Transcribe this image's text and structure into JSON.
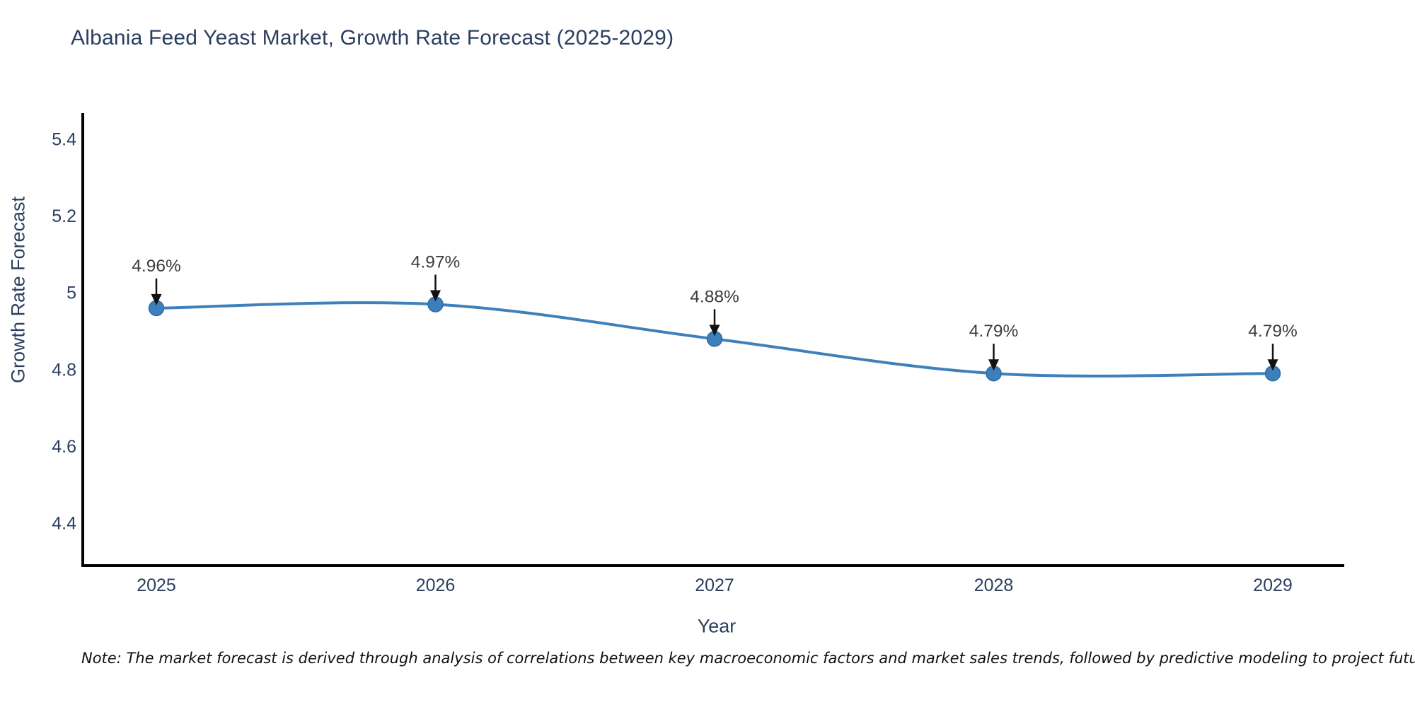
{
  "page": {
    "note": "Note: The market forecast is derived through analysis of correlations between key macroeconomic factors and market sales trends, followed by predictive modeling to project future sales"
  },
  "chart_data": {
    "type": "line",
    "title": "Albania Feed Yeast Market, Growth Rate Forecast (2025-2029)",
    "xlabel": "Year",
    "ylabel": "Growth Rate Forecast",
    "categories": [
      "2025",
      "2026",
      "2027",
      "2028",
      "2029"
    ],
    "values": [
      4.96,
      4.97,
      4.88,
      4.79,
      4.79
    ],
    "point_labels": [
      "4.96%",
      "4.97%",
      "4.88%",
      "4.79%",
      "4.79%"
    ],
    "yticks": [
      5.4,
      5.2,
      5.0,
      4.8,
      4.6,
      4.4
    ],
    "ytick_labels": [
      "5.4",
      "5.2",
      "5",
      "4.8",
      "4.6",
      "4.4"
    ],
    "ylim": [
      4.29,
      5.47
    ],
    "grid": false,
    "legend": "none",
    "line_shape": "spline",
    "annotation_style": "label-with-down-arrow",
    "colors": {
      "line": "#4080ba",
      "marker_fill": "#3d7fba",
      "marker_edge": "#2f6da6",
      "axis": "#000000",
      "title_text": "#2a3f5f",
      "tick_text": "#2a3f5f",
      "point_label_text": "#3c3c3c",
      "arrow": "#111111",
      "background": "#ffffff"
    }
  }
}
